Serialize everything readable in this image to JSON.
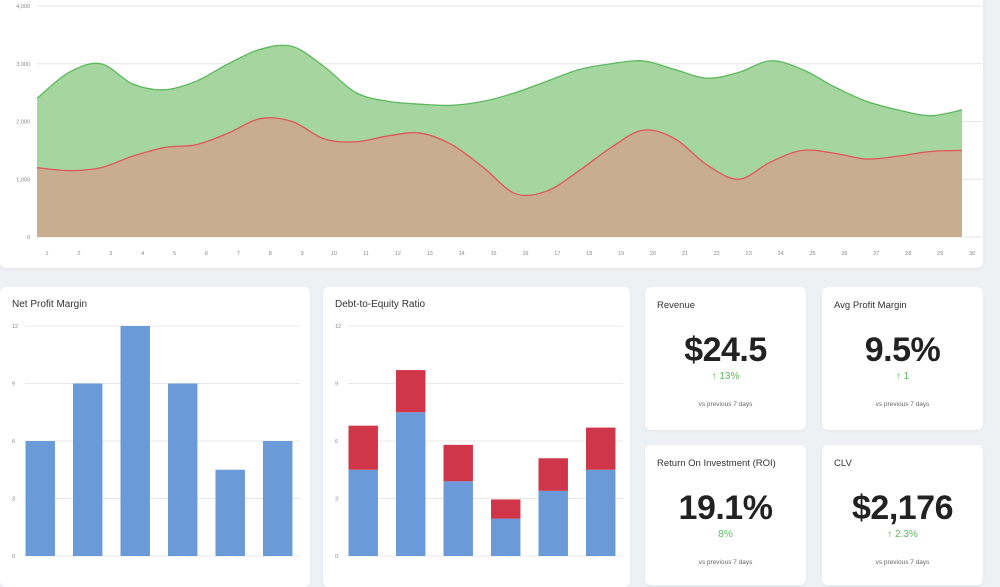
{
  "charts": {
    "area": {
      "chart_data": {
        "type": "area",
        "x": [
          1,
          2,
          3,
          4,
          5,
          6,
          7,
          8,
          9,
          10,
          11,
          12,
          13,
          14,
          15,
          16,
          17,
          18,
          19,
          20,
          21,
          22,
          23,
          24,
          25,
          26,
          27,
          28,
          29,
          30
        ],
        "ylim": [
          0,
          4000
        ],
        "yticks": [
          "0",
          "1,000",
          "2,000",
          "3,000",
          "4,000"
        ],
        "grid": true,
        "series": [
          {
            "values": [
              2400,
              2850,
              3000,
              2650,
              2550,
              2700,
              3000,
              3250,
              3300,
              2950,
              2500,
              2350,
              2300,
              2280,
              2350,
              2500,
              2700,
              2900,
              3000,
              3050,
              2900,
              2750,
              2850,
              3050,
              2900,
              2600,
              2350,
              2200,
              2100,
              2200
            ],
            "color": "#a5d6a0",
            "line": "#5cb85c"
          },
          {
            "values": [
              1200,
              1150,
              1200,
              1400,
              1550,
              1600,
              1800,
              2050,
              2000,
              1700,
              1650,
              1750,
              1800,
              1600,
              1200,
              750,
              800,
              1150,
              1550,
              1850,
              1700,
              1250,
              1000,
              1300,
              1500,
              1450,
              1350,
              1400,
              1480,
              1500
            ],
            "color": "#c9ad8f",
            "line": "#e05555"
          }
        ]
      }
    },
    "npm": {
      "title": "Net Profit Margin",
      "chart_data": {
        "type": "bar",
        "values": [
          6,
          9,
          12,
          9,
          4.5,
          6
        ],
        "ylim": [
          0,
          12
        ],
        "yticks": [
          "0",
          "3",
          "6",
          "9",
          "12"
        ],
        "color": "#6a9bd8",
        "grid": true
      }
    },
    "der": {
      "title": "Debt-to-Equity Ratio",
      "chart_data": {
        "type": "bar",
        "stacked": true,
        "ylim": [
          0,
          12
        ],
        "yticks": [
          "0",
          "3",
          "6",
          "9",
          "12"
        ],
        "grid": true,
        "series": [
          {
            "values": [
              4.5,
              7.5,
              3.9,
              1.95,
              3.4,
              4.5
            ],
            "color": "#6a9bd8"
          },
          {
            "values": [
              2.3,
              2.2,
              1.9,
              1.0,
              1.7,
              2.2
            ],
            "color": "#d0364a"
          }
        ]
      }
    }
  },
  "kpis": [
    {
      "title": "Revenue",
      "value": "$24.5",
      "change": "↑ 13%",
      "foot": "vs previous 7 days"
    },
    {
      "title": "Avg Profit Margin",
      "value": "9.5%",
      "change": "↑ 1",
      "foot": "vs previous 7 days"
    },
    {
      "title": "Return On Investment (ROI)",
      "value": "19.1%",
      "change": "8%",
      "foot": "vs previous 7 days"
    },
    {
      "title": "CLV",
      "value": "$2,176",
      "change": "↑ 2.3%",
      "foot": "vs previous 7 days"
    }
  ]
}
